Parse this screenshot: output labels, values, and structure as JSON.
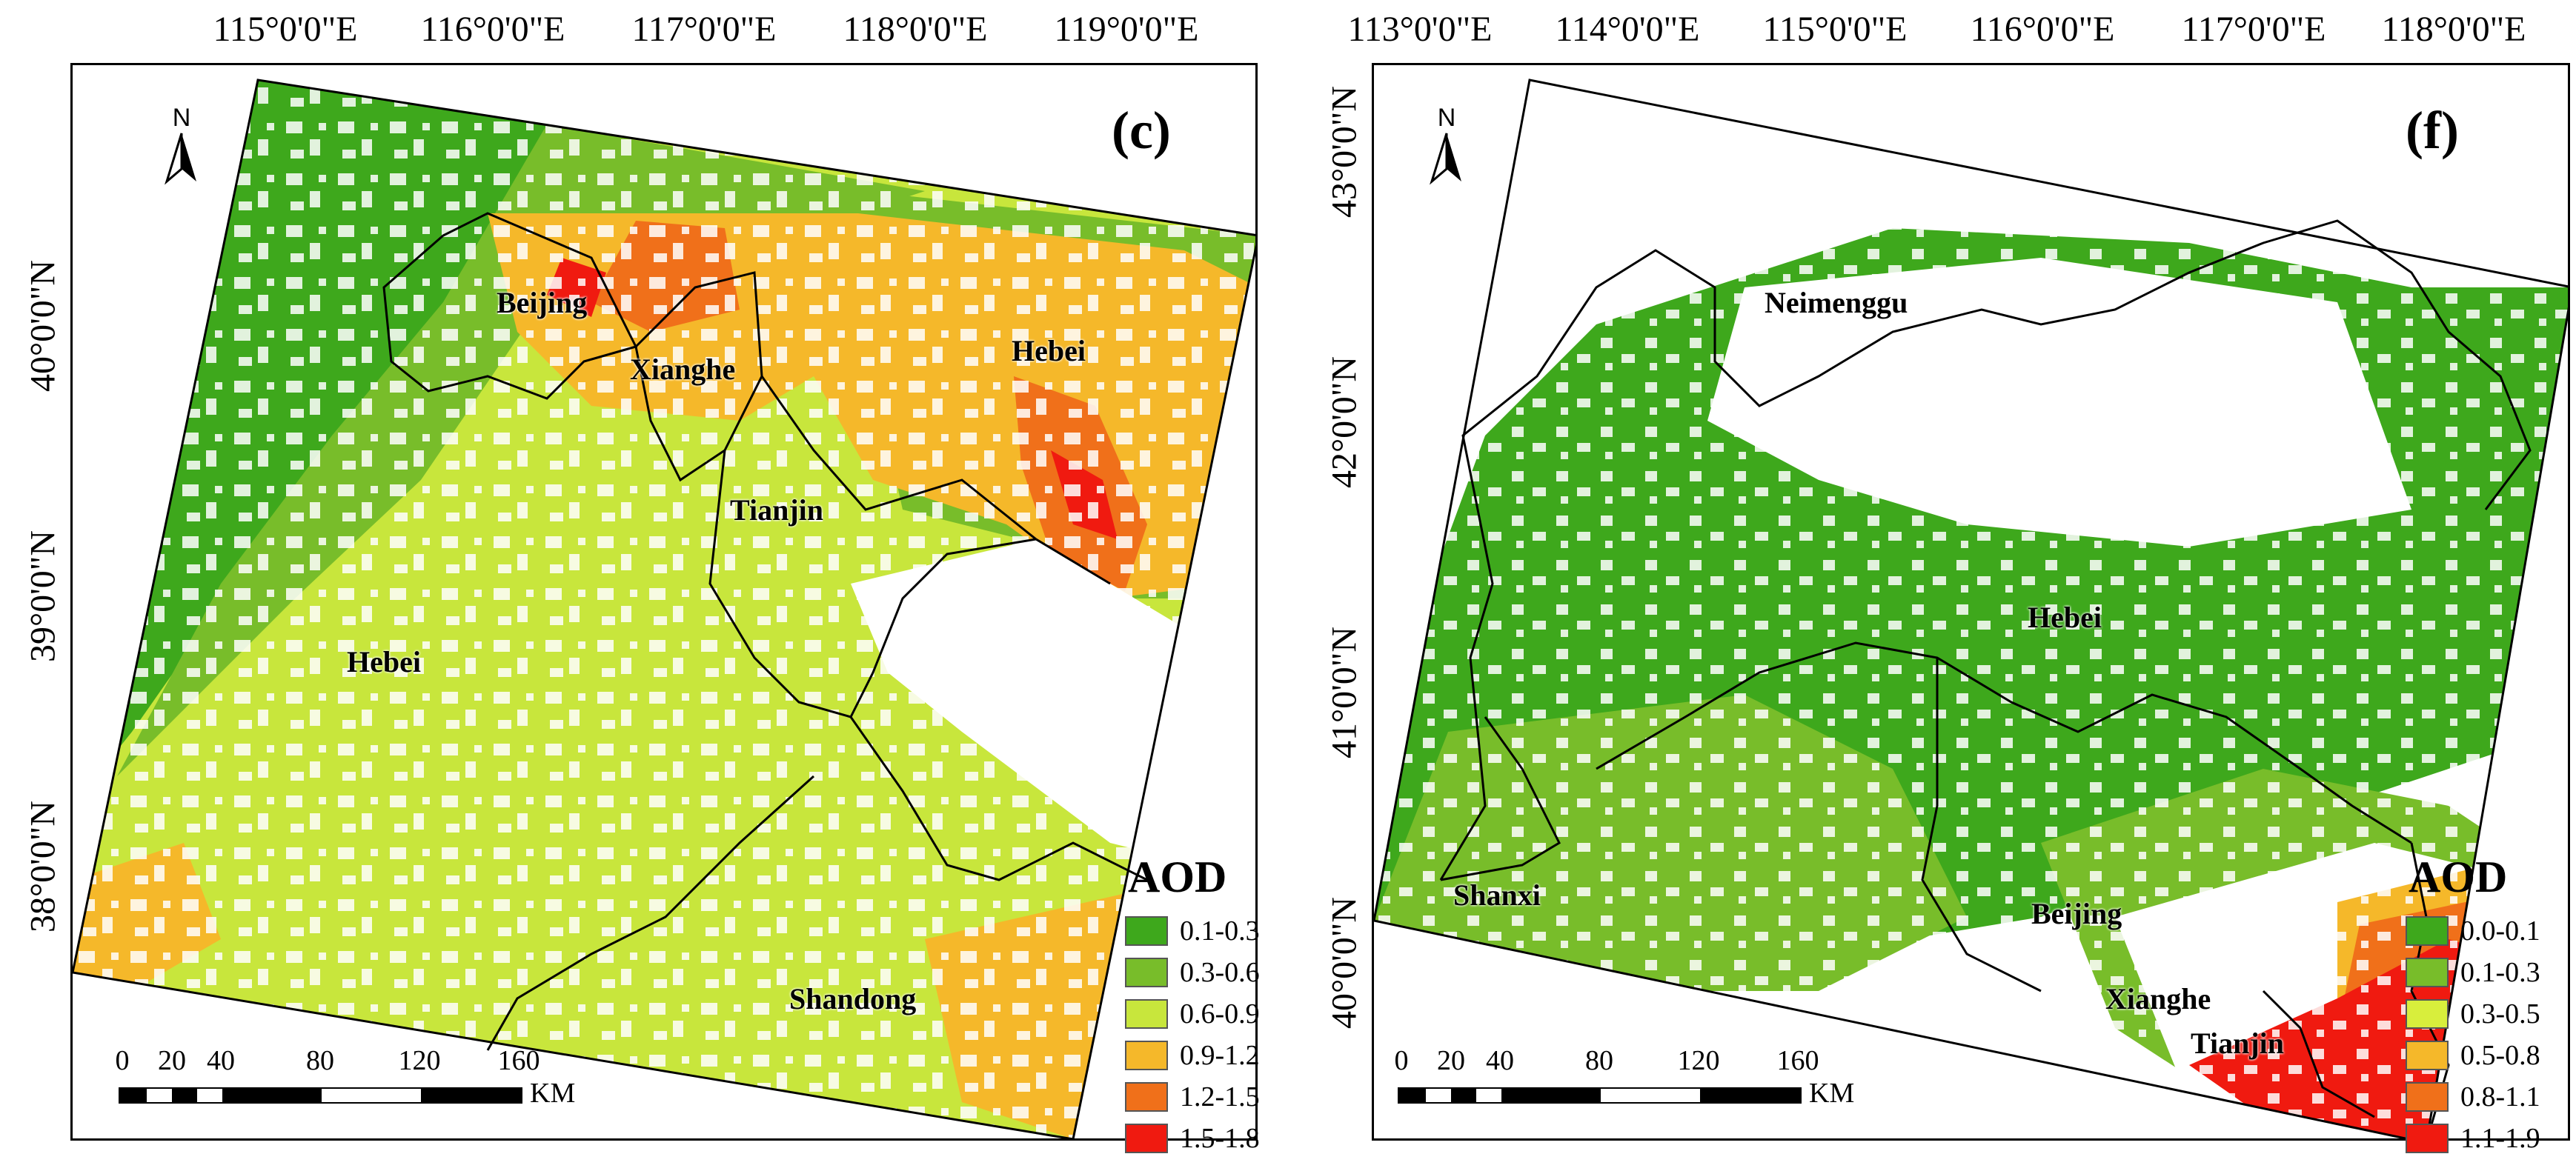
{
  "panel_c": {
    "letter": "(c)",
    "top_ticks": [
      "115°0'0\"E",
      "116°0'0\"E",
      "117°0'0\"E",
      "118°0'0\"E",
      "119°0'0\"E"
    ],
    "left_ticks": [
      "40°0'0\"N",
      "39°0'0\"N",
      "38°0'0\"N"
    ],
    "places": [
      "Beijing",
      "Xianghe",
      "Hebei",
      "Tianjin",
      "Hebei",
      "Shandong"
    ],
    "north_label": "N",
    "legend": {
      "title": "AOD",
      "items": [
        {
          "label": "0.1-0.3",
          "color": "#3ea81c"
        },
        {
          "label": "0.3-0.6",
          "color": "#78bd2a"
        },
        {
          "label": "0.6-0.9",
          "color": "#c8e63c"
        },
        {
          "label": "0.9-1.2",
          "color": "#f5b82a"
        },
        {
          "label": "1.2-1.5",
          "color": "#f0701a"
        },
        {
          "label": "1.5-1.8",
          "color": "#f01a10"
        }
      ]
    },
    "scale": {
      "labels": [
        "0",
        "20",
        "40",
        "80",
        "120",
        "160"
      ],
      "unit": "KM"
    }
  },
  "panel_f": {
    "letter": "(f)",
    "top_ticks": [
      "113°0'0\"E",
      "114°0'0\"E",
      "115°0'0\"E",
      "116°0'0\"E",
      "117°0'0\"E",
      "118°0'0\"E"
    ],
    "left_ticks": [
      "43°0'0\"N",
      "42°0'0\"N",
      "41°0'0\"N",
      "40°0'0\"N"
    ],
    "places": [
      "Neimenggu",
      "Hebei",
      "Shanxi",
      "Beijing",
      "Xianghe",
      "Tianjin"
    ],
    "north_label": "N",
    "legend": {
      "title": "AOD",
      "items": [
        {
          "label": "0.0-0.1",
          "color": "#3ea81c"
        },
        {
          "label": "0.1-0.3",
          "color": "#78bd2a"
        },
        {
          "label": "0.3-0.5",
          "color": "#d8ee3c"
        },
        {
          "label": "0.5-0.8",
          "color": "#f5b82a"
        },
        {
          "label": "0.8-1.1",
          "color": "#f0701a"
        },
        {
          "label": "1.1-1.9",
          "color": "#f01a10"
        }
      ]
    },
    "scale": {
      "labels": [
        "0",
        "20",
        "40",
        "80",
        "120",
        "160"
      ],
      "unit": "KM"
    }
  }
}
